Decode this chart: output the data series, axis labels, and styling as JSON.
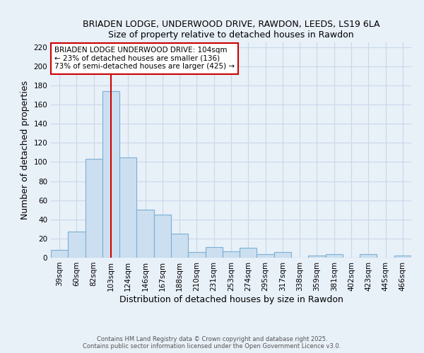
{
  "title": "BRIADEN LODGE, UNDERWOOD DRIVE, RAWDON, LEEDS, LS19 6LA",
  "subtitle": "Size of property relative to detached houses in Rawdon",
  "xlabel": "Distribution of detached houses by size in Rawdon",
  "ylabel": "Number of detached properties",
  "bar_labels": [
    "39sqm",
    "60sqm",
    "82sqm",
    "103sqm",
    "124sqm",
    "146sqm",
    "167sqm",
    "188sqm",
    "210sqm",
    "231sqm",
    "253sqm",
    "274sqm",
    "295sqm",
    "317sqm",
    "338sqm",
    "359sqm",
    "381sqm",
    "402sqm",
    "423sqm",
    "445sqm",
    "466sqm"
  ],
  "bar_values": [
    8,
    27,
    103,
    174,
    105,
    50,
    45,
    25,
    6,
    11,
    7,
    10,
    4,
    6,
    0,
    2,
    4,
    0,
    4,
    0,
    2
  ],
  "bar_color": "#ccdff0",
  "bar_edge_color": "#7aafd4",
  "vline_color": "#cc0000",
  "vline_position": 3.5,
  "annotation_title": "BRIADEN LODGE UNDERWOOD DRIVE: 104sqm",
  "annotation_line1": "← 23% of detached houses are smaller (136)",
  "annotation_line2": "73% of semi-detached houses are larger (425) →",
  "annotation_box_color": "#ffffff",
  "annotation_box_edge": "#cc0000",
  "ylim": [
    0,
    225
  ],
  "yticks": [
    0,
    20,
    40,
    60,
    80,
    100,
    120,
    140,
    160,
    180,
    200,
    220
  ],
  "footer1": "Contains HM Land Registry data © Crown copyright and database right 2025.",
  "footer2": "Contains public sector information licensed under the Open Government Licence v3.0.",
  "fig_bg_color": "#e8f0f8",
  "plot_bg_color": "#e8f0f8",
  "grid_color": "#c8d8e8",
  "title_fontsize": 9,
  "axis_label_fontsize": 9,
  "tick_fontsize": 7.5,
  "footer_fontsize": 6
}
